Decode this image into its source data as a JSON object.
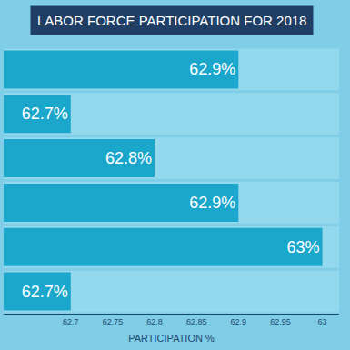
{
  "chart_data": {
    "type": "bar",
    "title": "LABOR FORCE PARTICIPATION FOR 2018",
    "orientation": "horizontal",
    "categories": [
      null,
      null,
      null,
      null,
      null,
      null
    ],
    "values": [
      62.9,
      62.7,
      62.8,
      62.9,
      63,
      62.7
    ],
    "value_labels": [
      "62.9%",
      "62.7%",
      "62.8%",
      "62.9%",
      "63%",
      "62.7%"
    ],
    "data_labels": true,
    "color": "#1ba6cb",
    "x_label": "PARTICIPATION %",
    "xlim": [
      62.62,
      63.02
    ],
    "xticks": [
      62.7,
      62.75,
      62.8,
      62.85,
      62.9,
      62.95,
      63
    ],
    "tick_labels": "x",
    "grid": false
  }
}
